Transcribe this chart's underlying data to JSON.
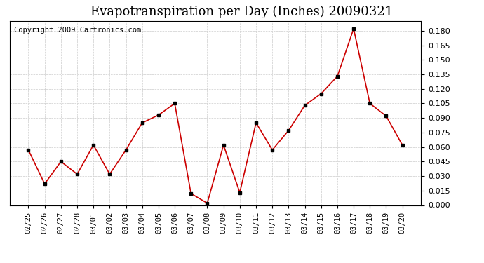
{
  "title": "Evapotranspiration per Day (Inches) 20090321",
  "copyright": "Copyright 2009 Cartronics.com",
  "x_labels": [
    "02/25",
    "02/26",
    "02/27",
    "02/28",
    "03/01",
    "03/02",
    "03/03",
    "03/04",
    "03/05",
    "03/06",
    "03/07",
    "03/08",
    "03/09",
    "03/10",
    "03/11",
    "03/12",
    "03/13",
    "03/14",
    "03/15",
    "03/16",
    "03/17",
    "03/18",
    "03/19",
    "03/20"
  ],
  "y_values": [
    0.057,
    0.022,
    0.045,
    0.032,
    0.062,
    0.032,
    0.057,
    0.085,
    0.093,
    0.105,
    0.012,
    0.002,
    0.062,
    0.013,
    0.085,
    0.057,
    0.077,
    0.103,
    0.115,
    0.133,
    0.182,
    0.105,
    0.092,
    0.062
  ],
  "line_color": "#cc0000",
  "marker_color": "#000000",
  "bg_color": "#ffffff",
  "plot_bg_color": "#ffffff",
  "grid_color": "#cccccc",
  "ylim": [
    0.0,
    0.19
  ],
  "ytick_interval": 0.015,
  "title_fontsize": 13,
  "copyright_fontsize": 7.5
}
